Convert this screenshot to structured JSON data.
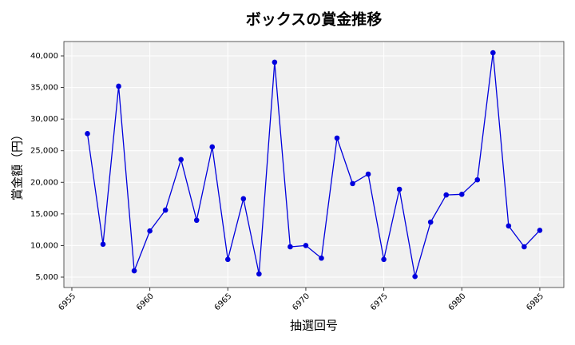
{
  "chart_data": {
    "type": "line",
    "title": "ボックスの賞金推移",
    "x_label": "抽選回号",
    "y_label": "賞金額（円）",
    "x": [
      6956,
      6957,
      6958,
      6959,
      6960,
      6961,
      6962,
      6963,
      6964,
      6965,
      6966,
      6967,
      6968,
      6969,
      6970,
      6971,
      6972,
      6973,
      6974,
      6975,
      6976,
      6977,
      6978,
      6979,
      6980,
      6981,
      6982,
      6983,
      6984,
      6985
    ],
    "series": [
      {
        "name": "賞金額",
        "color": "#0000dd",
        "values": [
          27700,
          10200,
          35200,
          6000,
          12300,
          15600,
          23600,
          14000,
          25600,
          7800,
          17400,
          5500,
          39000,
          9800,
          10000,
          8000,
          27000,
          19800,
          21300,
          7800,
          18900,
          5100,
          13700,
          18000,
          18100,
          20400,
          40500,
          13100,
          9800,
          12400
        ]
      }
    ],
    "xlim": [
      6954.49,
      6986.54
    ],
    "ylim": [
      3357,
      42274
    ],
    "xticks": [
      6955,
      6960,
      6965,
      6970,
      6975,
      6980,
      6985
    ],
    "yticks": [
      {
        "value": 5000,
        "label": "5,000"
      },
      {
        "value": 10000,
        "label": "10,000"
      },
      {
        "value": 15000,
        "label": "15,000"
      },
      {
        "value": 20000,
        "label": "20,000"
      },
      {
        "value": 25000,
        "label": "25,000"
      },
      {
        "value": 30000,
        "label": "30,000"
      },
      {
        "value": 35000,
        "label": "35,000"
      },
      {
        "value": 40000,
        "label": "40,000"
      }
    ],
    "grid": true
  }
}
